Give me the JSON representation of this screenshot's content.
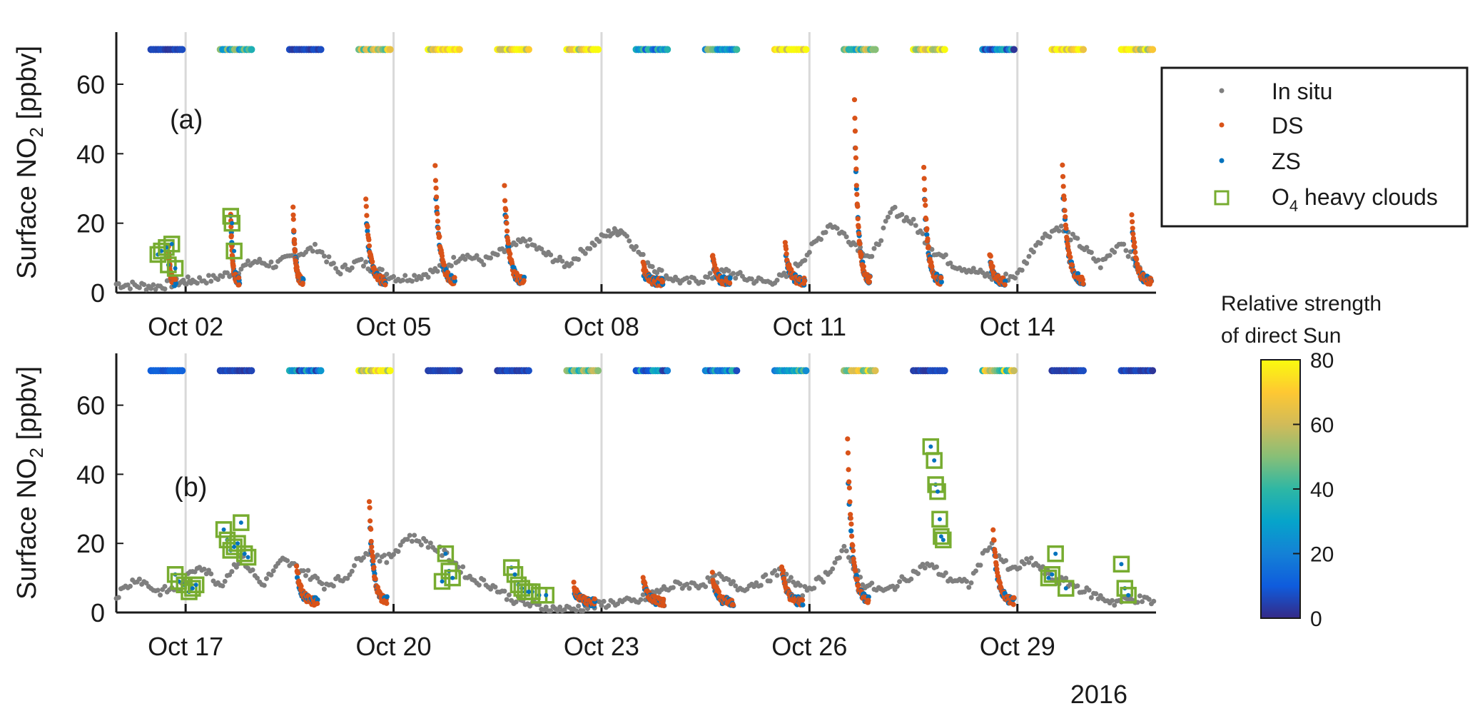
{
  "chart_data": [
    {
      "type": "scatter",
      "panel_label": "(a)",
      "ylabel": "Surface NO",
      "ylabel_subscript": "2",
      "ylabel_unit": " [ppbv]",
      "ylim": [
        0,
        75
      ],
      "yticks": [
        0,
        20,
        40,
        60
      ],
      "xlim_days": [
        1.0,
        16.0
      ],
      "xticks": [
        {
          "day": 2,
          "label": "Oct 02"
        },
        {
          "day": 5,
          "label": "Oct 05"
        },
        {
          "day": 8,
          "label": "Oct 08"
        },
        {
          "day": 11,
          "label": "Oct 11"
        },
        {
          "day": 14,
          "label": "Oct 14"
        }
      ],
      "midnight_lines": [
        2,
        5,
        8,
        11,
        14
      ],
      "insitu_baseline": [
        [
          1.0,
          2.5
        ],
        [
          1.3,
          2
        ],
        [
          1.6,
          1.8
        ],
        [
          1.9,
          3
        ],
        [
          2.1,
          3.5
        ],
        [
          2.4,
          4
        ],
        [
          2.7,
          6
        ],
        [
          3.0,
          9
        ],
        [
          3.3,
          8
        ],
        [
          3.6,
          11
        ],
        [
          3.9,
          13
        ],
        [
          4.2,
          6
        ],
        [
          4.5,
          9
        ],
        [
          4.8,
          6
        ],
        [
          5.1,
          4
        ],
        [
          5.4,
          5
        ],
        [
          5.7,
          7
        ],
        [
          6.0,
          11
        ],
        [
          6.3,
          9
        ],
        [
          6.6,
          12
        ],
        [
          6.9,
          15
        ],
        [
          7.2,
          11
        ],
        [
          7.5,
          8
        ],
        [
          7.8,
          13
        ],
        [
          8.1,
          17
        ],
        [
          8.3,
          18
        ],
        [
          8.6,
          10
        ],
        [
          8.9,
          5
        ],
        [
          9.2,
          3
        ],
        [
          9.5,
          4
        ],
        [
          9.8,
          6
        ],
        [
          10.1,
          4
        ],
        [
          10.4,
          3
        ],
        [
          10.7,
          5
        ],
        [
          11.0,
          12
        ],
        [
          11.3,
          20
        ],
        [
          11.6,
          15
        ],
        [
          11.9,
          10
        ],
        [
          12.2,
          24
        ],
        [
          12.5,
          20
        ],
        [
          12.8,
          12
        ],
        [
          13.1,
          8
        ],
        [
          13.4,
          6
        ],
        [
          13.7,
          4
        ],
        [
          14.0,
          5
        ],
        [
          14.3,
          15
        ],
        [
          14.6,
          19
        ],
        [
          14.9,
          14
        ],
        [
          15.2,
          8
        ],
        [
          15.5,
          15
        ],
        [
          15.8,
          5
        ]
      ],
      "peaks": [
        {
          "day": 1.75,
          "max": 14,
          "tail": 0.1
        },
        {
          "day": 2.65,
          "max": 22,
          "tail": 0.12
        },
        {
          "day": 3.55,
          "max": 24,
          "tail": 0.14
        },
        {
          "day": 4.6,
          "max": 26,
          "tail": 0.28
        },
        {
          "day": 5.6,
          "max": 36,
          "tail": 0.28
        },
        {
          "day": 6.6,
          "max": 30,
          "tail": 0.28
        },
        {
          "day": 7.65,
          "max": 0,
          "tail": 0.0
        },
        {
          "day": 8.6,
          "max": 8,
          "tail": 0.28
        },
        {
          "day": 9.6,
          "max": 11,
          "tail": 0.25
        },
        {
          "day": 10.65,
          "max": 14,
          "tail": 0.28
        },
        {
          "day": 11.65,
          "max": 55,
          "tail": 0.22
        },
        {
          "day": 12.65,
          "max": 35,
          "tail": 0.25
        },
        {
          "day": 13.6,
          "max": 12,
          "tail": 0.22
        },
        {
          "day": 14.65,
          "max": 37,
          "tail": 0.3
        },
        {
          "day": 15.65,
          "max": 22,
          "tail": 0.28
        }
      ],
      "clouds": [
        [
          1.6,
          11
        ],
        [
          1.65,
          12
        ],
        [
          1.72,
          13
        ],
        [
          1.8,
          14
        ],
        [
          1.75,
          8
        ],
        [
          1.85,
          7
        ],
        [
          2.65,
          22
        ],
        [
          2.67,
          20
        ],
        [
          2.7,
          12
        ]
      ],
      "sun_bars": [
        {
          "start": 1.5,
          "end": 1.95,
          "strength": 5
        },
        {
          "start": 2.5,
          "end": 2.95,
          "strength": 40
        },
        {
          "start": 3.5,
          "end": 3.95,
          "strength": 5
        },
        {
          "start": 4.5,
          "end": 4.95,
          "strength": 60
        },
        {
          "start": 5.5,
          "end": 5.95,
          "strength": 72
        },
        {
          "start": 6.5,
          "end": 6.95,
          "strength": 75
        },
        {
          "start": 7.5,
          "end": 7.95,
          "strength": 70
        },
        {
          "start": 8.5,
          "end": 8.95,
          "strength": 25
        },
        {
          "start": 9.5,
          "end": 9.95,
          "strength": 35
        },
        {
          "start": 10.5,
          "end": 10.95,
          "strength": 78
        },
        {
          "start": 11.5,
          "end": 11.95,
          "strength": 45
        },
        {
          "start": 12.5,
          "end": 12.95,
          "strength": 68
        },
        {
          "start": 13.5,
          "end": 13.95,
          "strength": 20
        },
        {
          "start": 14.5,
          "end": 14.95,
          "strength": 72
        },
        {
          "start": 15.5,
          "end": 15.95,
          "strength": 70
        }
      ]
    },
    {
      "type": "scatter",
      "panel_label": "(b)",
      "ylabel": "Surface NO",
      "ylabel_subscript": "2",
      "ylabel_unit": " [ppbv]",
      "ylim": [
        0,
        75
      ],
      "yticks": [
        0,
        20,
        40,
        60
      ],
      "xlim_days": [
        16.0,
        31.0
      ],
      "xticks": [
        {
          "day": 17,
          "label": "Oct 17"
        },
        {
          "day": 20,
          "label": "Oct 20"
        },
        {
          "day": 23,
          "label": "Oct 23"
        },
        {
          "day": 26,
          "label": "Oct 26"
        },
        {
          "day": 29,
          "label": "Oct 29"
        }
      ],
      "midnight_lines": [
        17,
        20,
        23,
        26,
        29
      ],
      "insitu_baseline": [
        [
          16.0,
          5
        ],
        [
          16.3,
          10
        ],
        [
          16.6,
          6
        ],
        [
          16.9,
          7
        ],
        [
          17.2,
          14
        ],
        [
          17.5,
          8
        ],
        [
          17.8,
          16
        ],
        [
          18.1,
          8
        ],
        [
          18.4,
          15
        ],
        [
          18.7,
          12
        ],
        [
          19.0,
          8
        ],
        [
          19.3,
          10
        ],
        [
          19.6,
          18
        ],
        [
          19.9,
          15
        ],
        [
          20.2,
          22
        ],
        [
          20.5,
          20
        ],
        [
          20.8,
          16
        ],
        [
          21.1,
          10
        ],
        [
          21.4,
          8
        ],
        [
          21.7,
          4
        ],
        [
          22.0,
          2
        ],
        [
          22.3,
          1
        ],
        [
          22.6,
          1
        ],
        [
          22.9,
          2
        ],
        [
          23.2,
          3
        ],
        [
          23.5,
          3
        ],
        [
          23.8,
          6
        ],
        [
          24.1,
          8
        ],
        [
          24.4,
          8
        ],
        [
          24.7,
          10
        ],
        [
          25.0,
          7
        ],
        [
          25.3,
          9
        ],
        [
          25.6,
          12
        ],
        [
          25.9,
          6
        ],
        [
          26.2,
          10
        ],
        [
          26.5,
          18
        ],
        [
          26.8,
          8
        ],
        [
          27.1,
          6
        ],
        [
          27.4,
          10
        ],
        [
          27.7,
          14
        ],
        [
          28.0,
          10
        ],
        [
          28.3,
          8
        ],
        [
          28.6,
          20
        ],
        [
          28.9,
          12
        ],
        [
          29.2,
          15
        ],
        [
          29.5,
          10
        ],
        [
          29.8,
          8
        ],
        [
          30.1,
          5
        ],
        [
          30.4,
          3
        ],
        [
          30.7,
          4
        ],
        [
          31.0,
          3
        ]
      ],
      "peaks": [
        {
          "day": 16.7,
          "max": 0,
          "tail": 0.0
        },
        {
          "day": 17.6,
          "max": 0,
          "tail": 0.0
        },
        {
          "day": 18.6,
          "max": 13,
          "tail": 0.3
        },
        {
          "day": 19.65,
          "max": 33,
          "tail": 0.25
        },
        {
          "day": 20.6,
          "max": 0,
          "tail": 0.0
        },
        {
          "day": 21.6,
          "max": 0,
          "tail": 0.0
        },
        {
          "day": 22.6,
          "max": 8,
          "tail": 0.3
        },
        {
          "day": 23.6,
          "max": 10,
          "tail": 0.3
        },
        {
          "day": 24.6,
          "max": 11,
          "tail": 0.3
        },
        {
          "day": 25.6,
          "max": 14,
          "tail": 0.3
        },
        {
          "day": 26.55,
          "max": 51,
          "tail": 0.3
        },
        {
          "day": 27.6,
          "max": 0,
          "tail": 0.0
        },
        {
          "day": 28.65,
          "max": 24,
          "tail": 0.3
        },
        {
          "day": 29.6,
          "max": 0,
          "tail": 0.0
        },
        {
          "day": 30.6,
          "max": 0,
          "tail": 0.0
        }
      ],
      "clouds": [
        [
          16.85,
          11
        ],
        [
          16.9,
          9
        ],
        [
          16.98,
          8
        ],
        [
          17.05,
          6
        ],
        [
          17.1,
          7
        ],
        [
          17.15,
          8
        ],
        [
          17.55,
          24
        ],
        [
          17.6,
          21
        ],
        [
          17.65,
          18
        ],
        [
          17.7,
          19
        ],
        [
          17.75,
          20
        ],
        [
          17.8,
          26
        ],
        [
          17.85,
          17
        ],
        [
          17.9,
          16
        ],
        [
          21.7,
          13
        ],
        [
          21.75,
          11
        ],
        [
          21.8,
          8
        ],
        [
          21.85,
          7
        ],
        [
          21.9,
          6
        ],
        [
          21.95,
          6
        ],
        [
          22.0,
          6
        ],
        [
          22.1,
          5
        ],
        [
          22.2,
          5
        ],
        [
          20.75,
          17
        ],
        [
          20.8,
          12
        ],
        [
          20.85,
          10
        ],
        [
          20.7,
          9
        ],
        [
          27.75,
          48
        ],
        [
          27.8,
          44
        ],
        [
          27.82,
          37
        ],
        [
          27.85,
          35
        ],
        [
          27.88,
          27
        ],
        [
          27.9,
          22
        ],
        [
          27.93,
          21
        ],
        [
          29.55,
          17
        ],
        [
          29.5,
          11
        ],
        [
          29.45,
          10
        ],
        [
          29.7,
          7
        ],
        [
          30.5,
          14
        ],
        [
          30.55,
          7
        ],
        [
          30.6,
          5
        ]
      ],
      "sun_bars": [
        {
          "start": 16.5,
          "end": 16.95,
          "strength": 10
        },
        {
          "start": 17.5,
          "end": 17.95,
          "strength": 5
        },
        {
          "start": 18.5,
          "end": 18.95,
          "strength": 22
        },
        {
          "start": 19.5,
          "end": 19.95,
          "strength": 70
        },
        {
          "start": 20.5,
          "end": 20.95,
          "strength": 5
        },
        {
          "start": 21.5,
          "end": 21.95,
          "strength": 5
        },
        {
          "start": 22.5,
          "end": 22.95,
          "strength": 50
        },
        {
          "start": 23.5,
          "end": 23.95,
          "strength": 22
        },
        {
          "start": 24.5,
          "end": 24.95,
          "strength": 20
        },
        {
          "start": 25.5,
          "end": 25.95,
          "strength": 30
        },
        {
          "start": 26.5,
          "end": 26.95,
          "strength": 62
        },
        {
          "start": 27.5,
          "end": 27.95,
          "strength": 5
        },
        {
          "start": 28.5,
          "end": 28.95,
          "strength": 55
        },
        {
          "start": 29.5,
          "end": 29.95,
          "strength": 5
        },
        {
          "start": 30.5,
          "end": 30.95,
          "strength": 5
        }
      ],
      "year_label": "2016"
    }
  ],
  "legend": {
    "entries": [
      {
        "label": "In situ",
        "key": "insitu"
      },
      {
        "label": "DS",
        "key": "ds"
      },
      {
        "label": "ZS",
        "key": "zs"
      },
      {
        "label": "O",
        "sub": "4",
        "suffix": " heavy clouds",
        "key": "clouds"
      }
    ]
  },
  "colorbar": {
    "title_line1": "Relative strength",
    "title_line2": "of direct Sun",
    "range": [
      0,
      80
    ],
    "ticks": [
      0,
      20,
      40,
      60,
      80
    ]
  },
  "colors": {
    "insitu": "#7f7f7f",
    "ds": "#d95319",
    "zs": "#0072bd",
    "clouds": "#77ac30",
    "axis": "#1a1a1a",
    "midnight": "#d9d9d9",
    "parula": [
      "#352a87",
      "#0f5cdd",
      "#1481d6",
      "#06a4ca",
      "#2eb7a4",
      "#87bf77",
      "#d1bb59",
      "#fec832",
      "#f9fb0e"
    ]
  }
}
